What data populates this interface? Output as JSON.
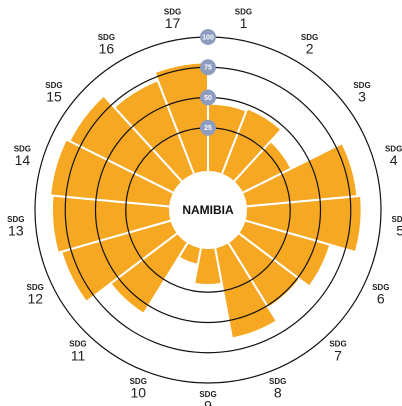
{
  "chart_data": {
    "type": "polar_bar",
    "title": "NAMIBIA",
    "label_prefix": "SDG",
    "categories": [
      "1",
      "2",
      "3",
      "4",
      "5",
      "6",
      "7",
      "8",
      "9",
      "10",
      "11",
      "12",
      "13",
      "14",
      "15",
      "16",
      "17"
    ],
    "values": [
      45,
      47,
      34,
      81,
      84,
      62,
      52,
      65,
      19,
      3,
      58,
      83,
      86,
      88,
      85,
      72,
      79
    ],
    "color": "#f7a823",
    "ylim": [
      0,
      100
    ],
    "yticks": [
      25,
      50,
      75,
      100
    ],
    "grid": true
  }
}
